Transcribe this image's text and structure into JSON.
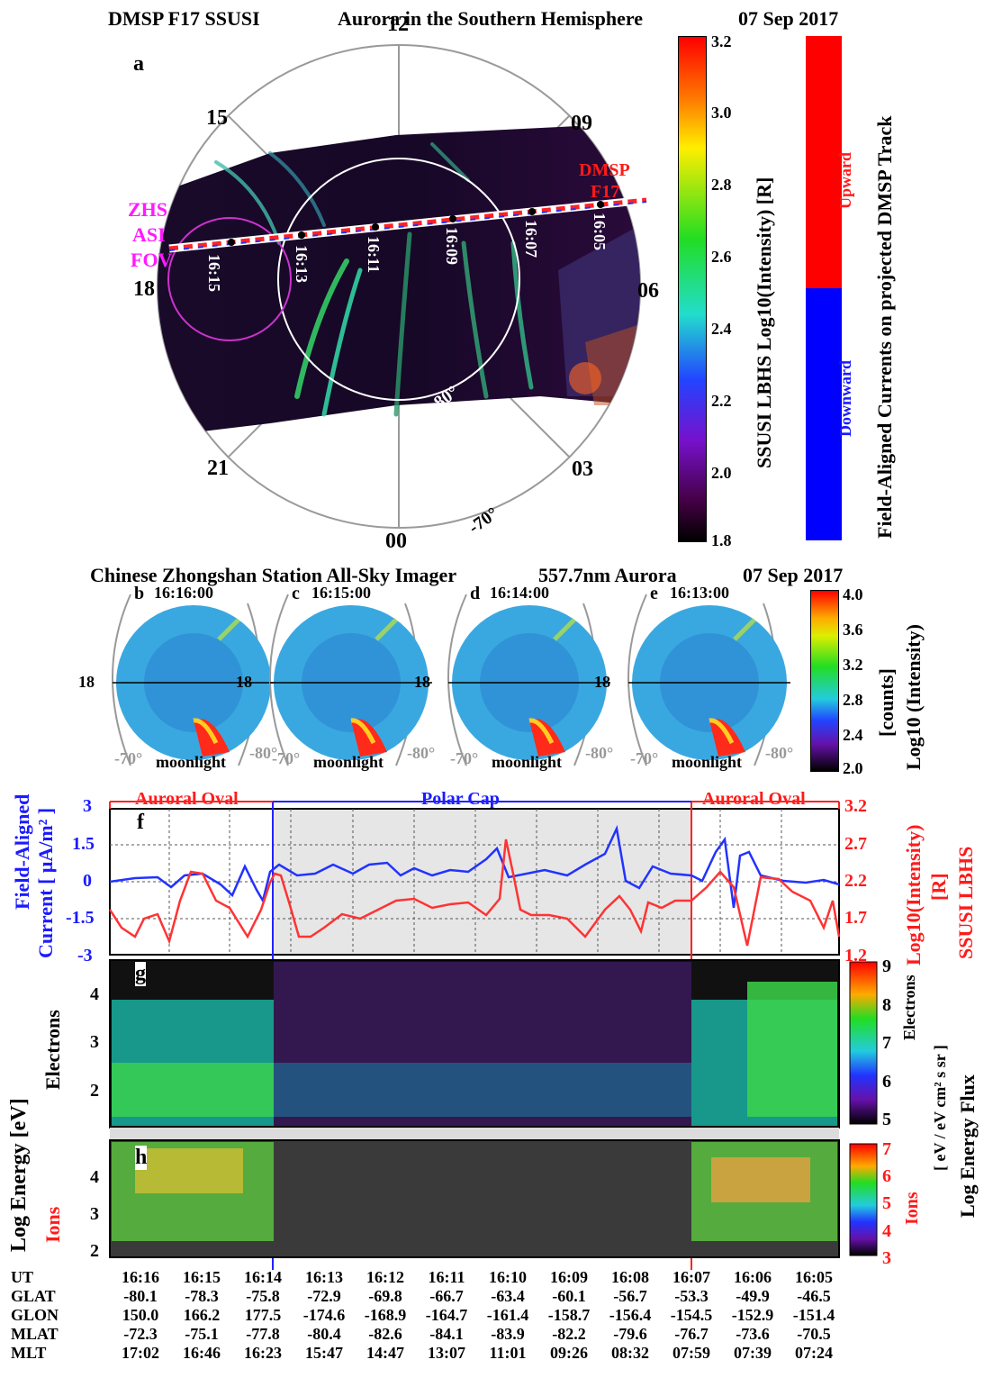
{
  "panel_a": {
    "title_left": "DMSP F17 SSUSI",
    "title_mid": "Aurora in the Southern Hemisphere",
    "title_right": "07 Sep 2017",
    "label": "a",
    "mlt_labels": {
      "top": "12",
      "bottom": "00",
      "left": "18",
      "right": "06",
      "ul": "15",
      "ur": "09",
      "ll": "21",
      "lr": "03"
    },
    "lat_labels": [
      "-80°",
      "-70°"
    ],
    "track_times": [
      "16:15",
      "16:13",
      "16:11",
      "16:09",
      "16:07",
      "16:05"
    ],
    "dmsp_label": [
      "DMSP",
      "F17"
    ],
    "zhs_label": [
      "ZHS",
      "ASI",
      "FOV"
    ],
    "colorbar_ticks": [
      "3.2",
      "3.0",
      "2.8",
      "2.6",
      "2.4",
      "2.2",
      "2.0",
      "1.8"
    ],
    "colorbar_title": "SSUSI LBHS Log10(Intensity) [R]",
    "fac_upward": "Upward",
    "fac_downward": "Downward",
    "fac_title": "Field-Aligned Currents on projected DMSP Track"
  },
  "asi_row": {
    "title_left": "Chinese Zhongshan Station All-Sky Imager",
    "title_mid": "557.7nm Aurora",
    "title_right": "07 Sep 2017",
    "panels": [
      {
        "label": "b",
        "time": "16:16:00"
      },
      {
        "label": "c",
        "time": "16:15:00"
      },
      {
        "label": "d",
        "time": "16:14:00"
      },
      {
        "label": "e",
        "time": "16:13:00"
      }
    ],
    "hour_label": "18",
    "lat_left": "-70°",
    "lat_right": "-80°",
    "moon_label": "moonlight",
    "colorbar_ticks": [
      "4.0",
      "3.6",
      "3.2",
      "2.8",
      "2.4",
      "2.0"
    ],
    "colorbar_title_1": "Log10 (Intensity)",
    "colorbar_title_2": "[counts]"
  },
  "panel_f": {
    "label": "f",
    "region_left": "Auroral Oval",
    "region_mid": "Polar Cap",
    "region_right": "Auroral Oval",
    "left_ticks": [
      "3",
      "1.5",
      "0",
      "-1.5",
      "-3"
    ],
    "right_ticks": [
      "3.2",
      "2.7",
      "2.2",
      "1.7",
      "1.2"
    ],
    "left_title_1": "Field-Aligned",
    "left_title_2": "Current [ μA/m² ]",
    "right_title_1": "Log10(Intensity)",
    "right_title_2": "[R]",
    "right_title_3": "SSUSI LBHS"
  },
  "panel_g": {
    "label": "g",
    "ticks": [
      "4",
      "3",
      "2"
    ],
    "cbar_ticks": [
      "9",
      "8",
      "7",
      "6",
      "5"
    ],
    "cbar_title": "Electrons"
  },
  "panel_h": {
    "label": "h",
    "ticks": [
      "4",
      "3",
      "2"
    ],
    "cbar_ticks": [
      "7",
      "6",
      "5",
      "4",
      "3"
    ],
    "cbar_title": "Ions"
  },
  "axis_labels": {
    "log_energy": "Log Energy  [eV]",
    "electrons": "Electrons",
    "ions": "Ions",
    "energy_flux": "Log Energy Flux",
    "units": "[ eV / eV cm² s sr ]"
  },
  "ephemeris": {
    "rows": [
      {
        "label": "UT",
        "values": [
          "16:16",
          "16:15",
          "16:14",
          "16:13",
          "16:12",
          "16:11",
          "16:10",
          "16:09",
          "16:08",
          "16:07",
          "16:06",
          "16:05"
        ]
      },
      {
        "label": "GLAT",
        "values": [
          "-80.1",
          "-78.3",
          "-75.8",
          "-72.9",
          "-69.8",
          "-66.7",
          "-63.4",
          "-60.1",
          "-56.7",
          "-53.3",
          "-49.9",
          "-46.5"
        ]
      },
      {
        "label": "GLON",
        "values": [
          "150.0",
          "166.2",
          "177.5",
          "-174.6",
          "-168.9",
          "-164.7",
          "-161.4",
          "-158.7",
          "-156.4",
          "-154.5",
          "-152.9",
          "-151.4"
        ]
      },
      {
        "label": "MLAT",
        "values": [
          "-72.3",
          "-75.1",
          "-77.8",
          "-80.4",
          "-82.6",
          "-84.1",
          "-83.9",
          "-82.2",
          "-79.6",
          "-76.7",
          "-73.6",
          "-70.5"
        ]
      },
      {
        "label": "MLT",
        "values": [
          "17:02",
          "16:46",
          "16:23",
          "15:47",
          "14:47",
          "13:07",
          "11:01",
          "09:26",
          "08:32",
          "07:59",
          "07:39",
          "07:24"
        ]
      }
    ]
  },
  "colors": {
    "red": "#ff1a1a",
    "blue": "#1a1aff",
    "magenta": "#ff19ff"
  }
}
